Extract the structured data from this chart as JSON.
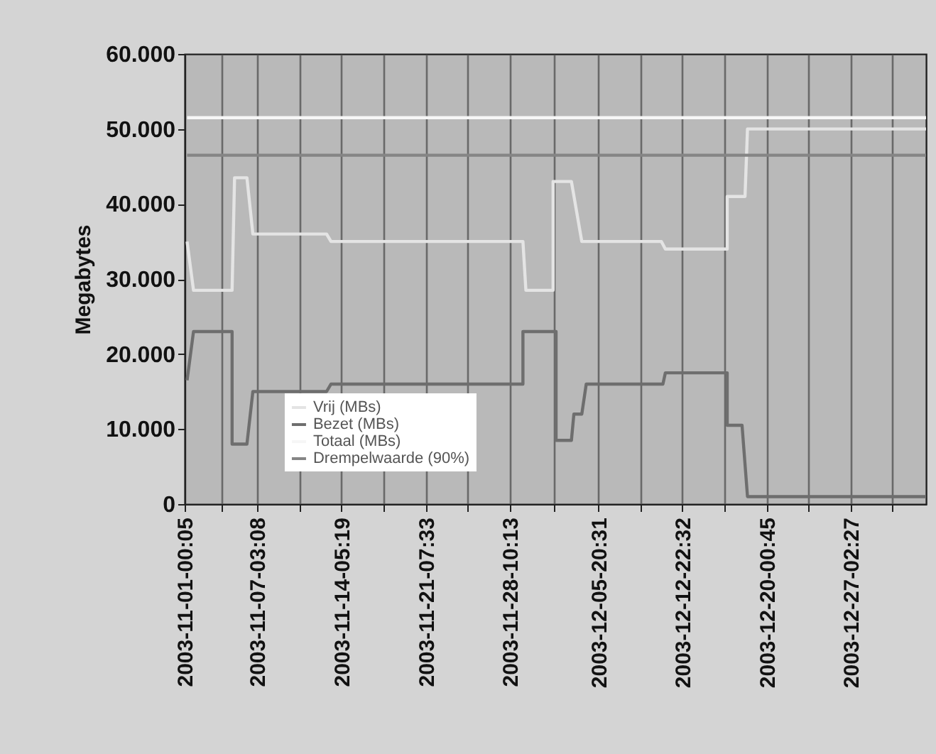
{
  "chart_data": {
    "type": "line",
    "ylabel": "Megabytes",
    "xlim": [
      "2003-11-01T00:05",
      "2004-01-02T11:00"
    ],
    "xticks": [
      {
        "value": "2003-11-01T00:05",
        "label": "2003-11-01-00:05"
      },
      {
        "value": "2003-11-04T01:37",
        "label": null
      },
      {
        "value": "2003-11-07T03:08",
        "label": "2003-11-07-03:08"
      },
      {
        "value": "2003-11-10T16:13",
        "label": null
      },
      {
        "value": "2003-11-14T05:19",
        "label": "2003-11-14-05:19"
      },
      {
        "value": "2003-11-17T18:25",
        "label": null
      },
      {
        "value": "2003-11-21T07:33",
        "label": "2003-11-21-07:33"
      },
      {
        "value": "2003-11-24T20:52",
        "label": null
      },
      {
        "value": "2003-11-28T10:13",
        "label": "2003-11-28-10:13"
      },
      {
        "value": "2003-12-02T03:20",
        "label": null
      },
      {
        "value": "2003-12-05T20:31",
        "label": "2003-12-05-20:31"
      },
      {
        "value": "2003-12-09T09:27",
        "label": null
      },
      {
        "value": "2003-12-12T22:32",
        "label": "2003-12-12-22:32"
      },
      {
        "value": "2003-12-16T11:37",
        "label": null
      },
      {
        "value": "2003-12-20T00:45",
        "label": "2003-12-20-00:45"
      },
      {
        "value": "2003-12-23T13:33",
        "label": null
      },
      {
        "value": "2003-12-27T02:27",
        "label": "2003-12-27-02:27"
      },
      {
        "value": "2003-12-30T15:15",
        "label": null
      }
    ],
    "ylim": [
      0,
      60000
    ],
    "yticks": [
      {
        "value": 0,
        "label": "0"
      },
      {
        "value": 10000,
        "label": "10.000"
      },
      {
        "value": 20000,
        "label": "20.000"
      },
      {
        "value": 30000,
        "label": "30.000"
      },
      {
        "value": 40000,
        "label": "40.000"
      },
      {
        "value": 50000,
        "label": "50.000"
      },
      {
        "value": 60000,
        "label": "60.000"
      }
    ],
    "grid": "x",
    "legend": "bottom",
    "series": [
      {
        "name": "Vrij (MBs)",
        "color": "#e4e4e4",
        "x": [
          "2003-11-01T05:00",
          "2003-11-01T18:00",
          "2003-11-05T00:00",
          "2003-11-05T05:00",
          "2003-11-06T06:00",
          "2003-11-06T18:00",
          "2003-11-12T23:00",
          "2003-11-13T08:00",
          "2003-11-29T12:00",
          "2003-11-29T18:00",
          "2003-12-02T01:00",
          "2003-12-02T01:00",
          "2003-12-03T14:00",
          "2003-12-04T11:00",
          "2003-12-11T04:00",
          "2003-12-11T12:00",
          "2003-12-16T17:00",
          "2003-12-16T17:00",
          "2003-12-18T05:00",
          "2003-12-18T10:00",
          "2004-01-02T11:00"
        ],
        "values": [
          35000,
          28500,
          28500,
          43500,
          43500,
          36000,
          36000,
          35000,
          35000,
          28500,
          28500,
          43000,
          43000,
          35000,
          35000,
          34000,
          34000,
          41000,
          41000,
          50000,
          50000
        ]
      },
      {
        "name": "Bezet (MBs)",
        "color": "#6e6e6e",
        "x": [
          "2003-11-01T05:00",
          "2003-11-01T18:00",
          "2003-11-05T00:00",
          "2003-11-05T00:00",
          "2003-11-06T06:00",
          "2003-11-06T18:00",
          "2003-11-12T23:00",
          "2003-11-13T08:00",
          "2003-11-29T12:00",
          "2003-11-29T12:00",
          "2003-12-02T07:00",
          "2003-12-02T07:00",
          "2003-12-03T14:00",
          "2003-12-03T19:00",
          "2003-12-04T11:00",
          "2003-12-04T20:00",
          "2003-12-11T07:00",
          "2003-12-11T12:00",
          "2003-12-16T17:00",
          "2003-12-16T17:00",
          "2003-12-17T23:00",
          "2003-12-18T10:00",
          "2004-01-02T11:00"
        ],
        "values": [
          16500,
          23000,
          23000,
          8000,
          8000,
          15000,
          15000,
          16000,
          16000,
          23000,
          23000,
          8500,
          8500,
          12000,
          12000,
          16000,
          16000,
          17500,
          17500,
          10500,
          10500,
          1000,
          1000
        ]
      },
      {
        "name": "Totaal (MBs)",
        "color": "#f6f6f6",
        "x": [
          "2003-11-01T05:00",
          "2004-01-02T11:00"
        ],
        "values": [
          51500,
          51500
        ]
      },
      {
        "name": "Drempelwaarde (90%)",
        "color": "#858585",
        "x": [
          "2003-11-01T05:00",
          "2004-01-02T11:00"
        ],
        "values": [
          46500,
          46500
        ]
      }
    ]
  }
}
